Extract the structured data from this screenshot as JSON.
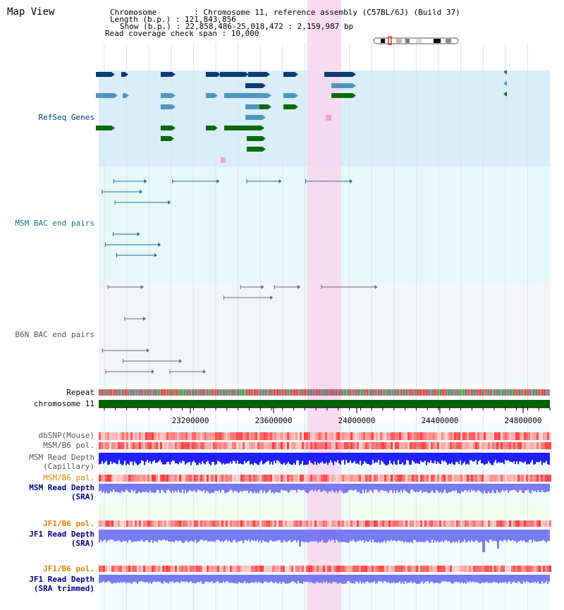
{
  "header": {
    "title": "Map View",
    "chromosome_line": "Chromosome        : Chromosome 11, reference assembly (C57BL/6J) (Build 37)",
    "length_line": "Length (b.p.) : 121,843,856",
    "show_line": "Show (b.p.) : 22,858,486-25,018,472 : 2,159,987 bp",
    "coverage_line": "Read coverage check span : 10,000"
  },
  "tracks": {
    "refseq": "RefSeq Genes",
    "msm_bac": "MSM BAC end pairs",
    "b6n_bac": "B6N BAC end pairs",
    "repeat": "Repeat",
    "chromosome": "chromosome 11",
    "dbsnp": "dbSNP(Mouse)",
    "msm_b6_pol_1": "MSM/B6 pol.",
    "msm_depth_cap_1": "MSM Read Depth",
    "msm_depth_cap_2": "(Capillary)",
    "msm_b6_pol_2": "MSM/B6 pol.",
    "msm_depth_sra_1": "MSM Read Depth",
    "msm_depth_sra_2": "(SRA)",
    "jf1_b6_pol_1": "JF1/B6 pol.",
    "jf1_depth_sra_1": "JF1 Read Depth",
    "jf1_depth_sra_2": "(SRA)",
    "jf1_b6_pol_2": "JF1/B6 pol.",
    "jf1_depth_trim_1": "JF1 Read Depth",
    "jf1_depth_trim_2": "(SRA trimmed)"
  },
  "axis": {
    "ticks": [
      "23200000",
      "23600000",
      "24000000",
      "24400000",
      "24800000"
    ]
  },
  "colors": {
    "refseq_bg": "#d9eef8",
    "msm_bg": "#e6f8f8",
    "b6n_bg": "#f3f5f8",
    "highlight": "#f8d6ee",
    "gene_dark": "#0d3a72",
    "gene_light": "#4f95be",
    "gene_green": "#0a6a0a",
    "msm_line": "#18708e",
    "b6n_line": "#6a6a6a",
    "chromosome": "#006400",
    "polymorphism": "#ff3030",
    "depth": "#2020ff",
    "depth_light": "#7a7af0",
    "msm_label": "#003a7a",
    "jf1_pol_label": "#e08000",
    "blue_label": "#00008b"
  }
}
